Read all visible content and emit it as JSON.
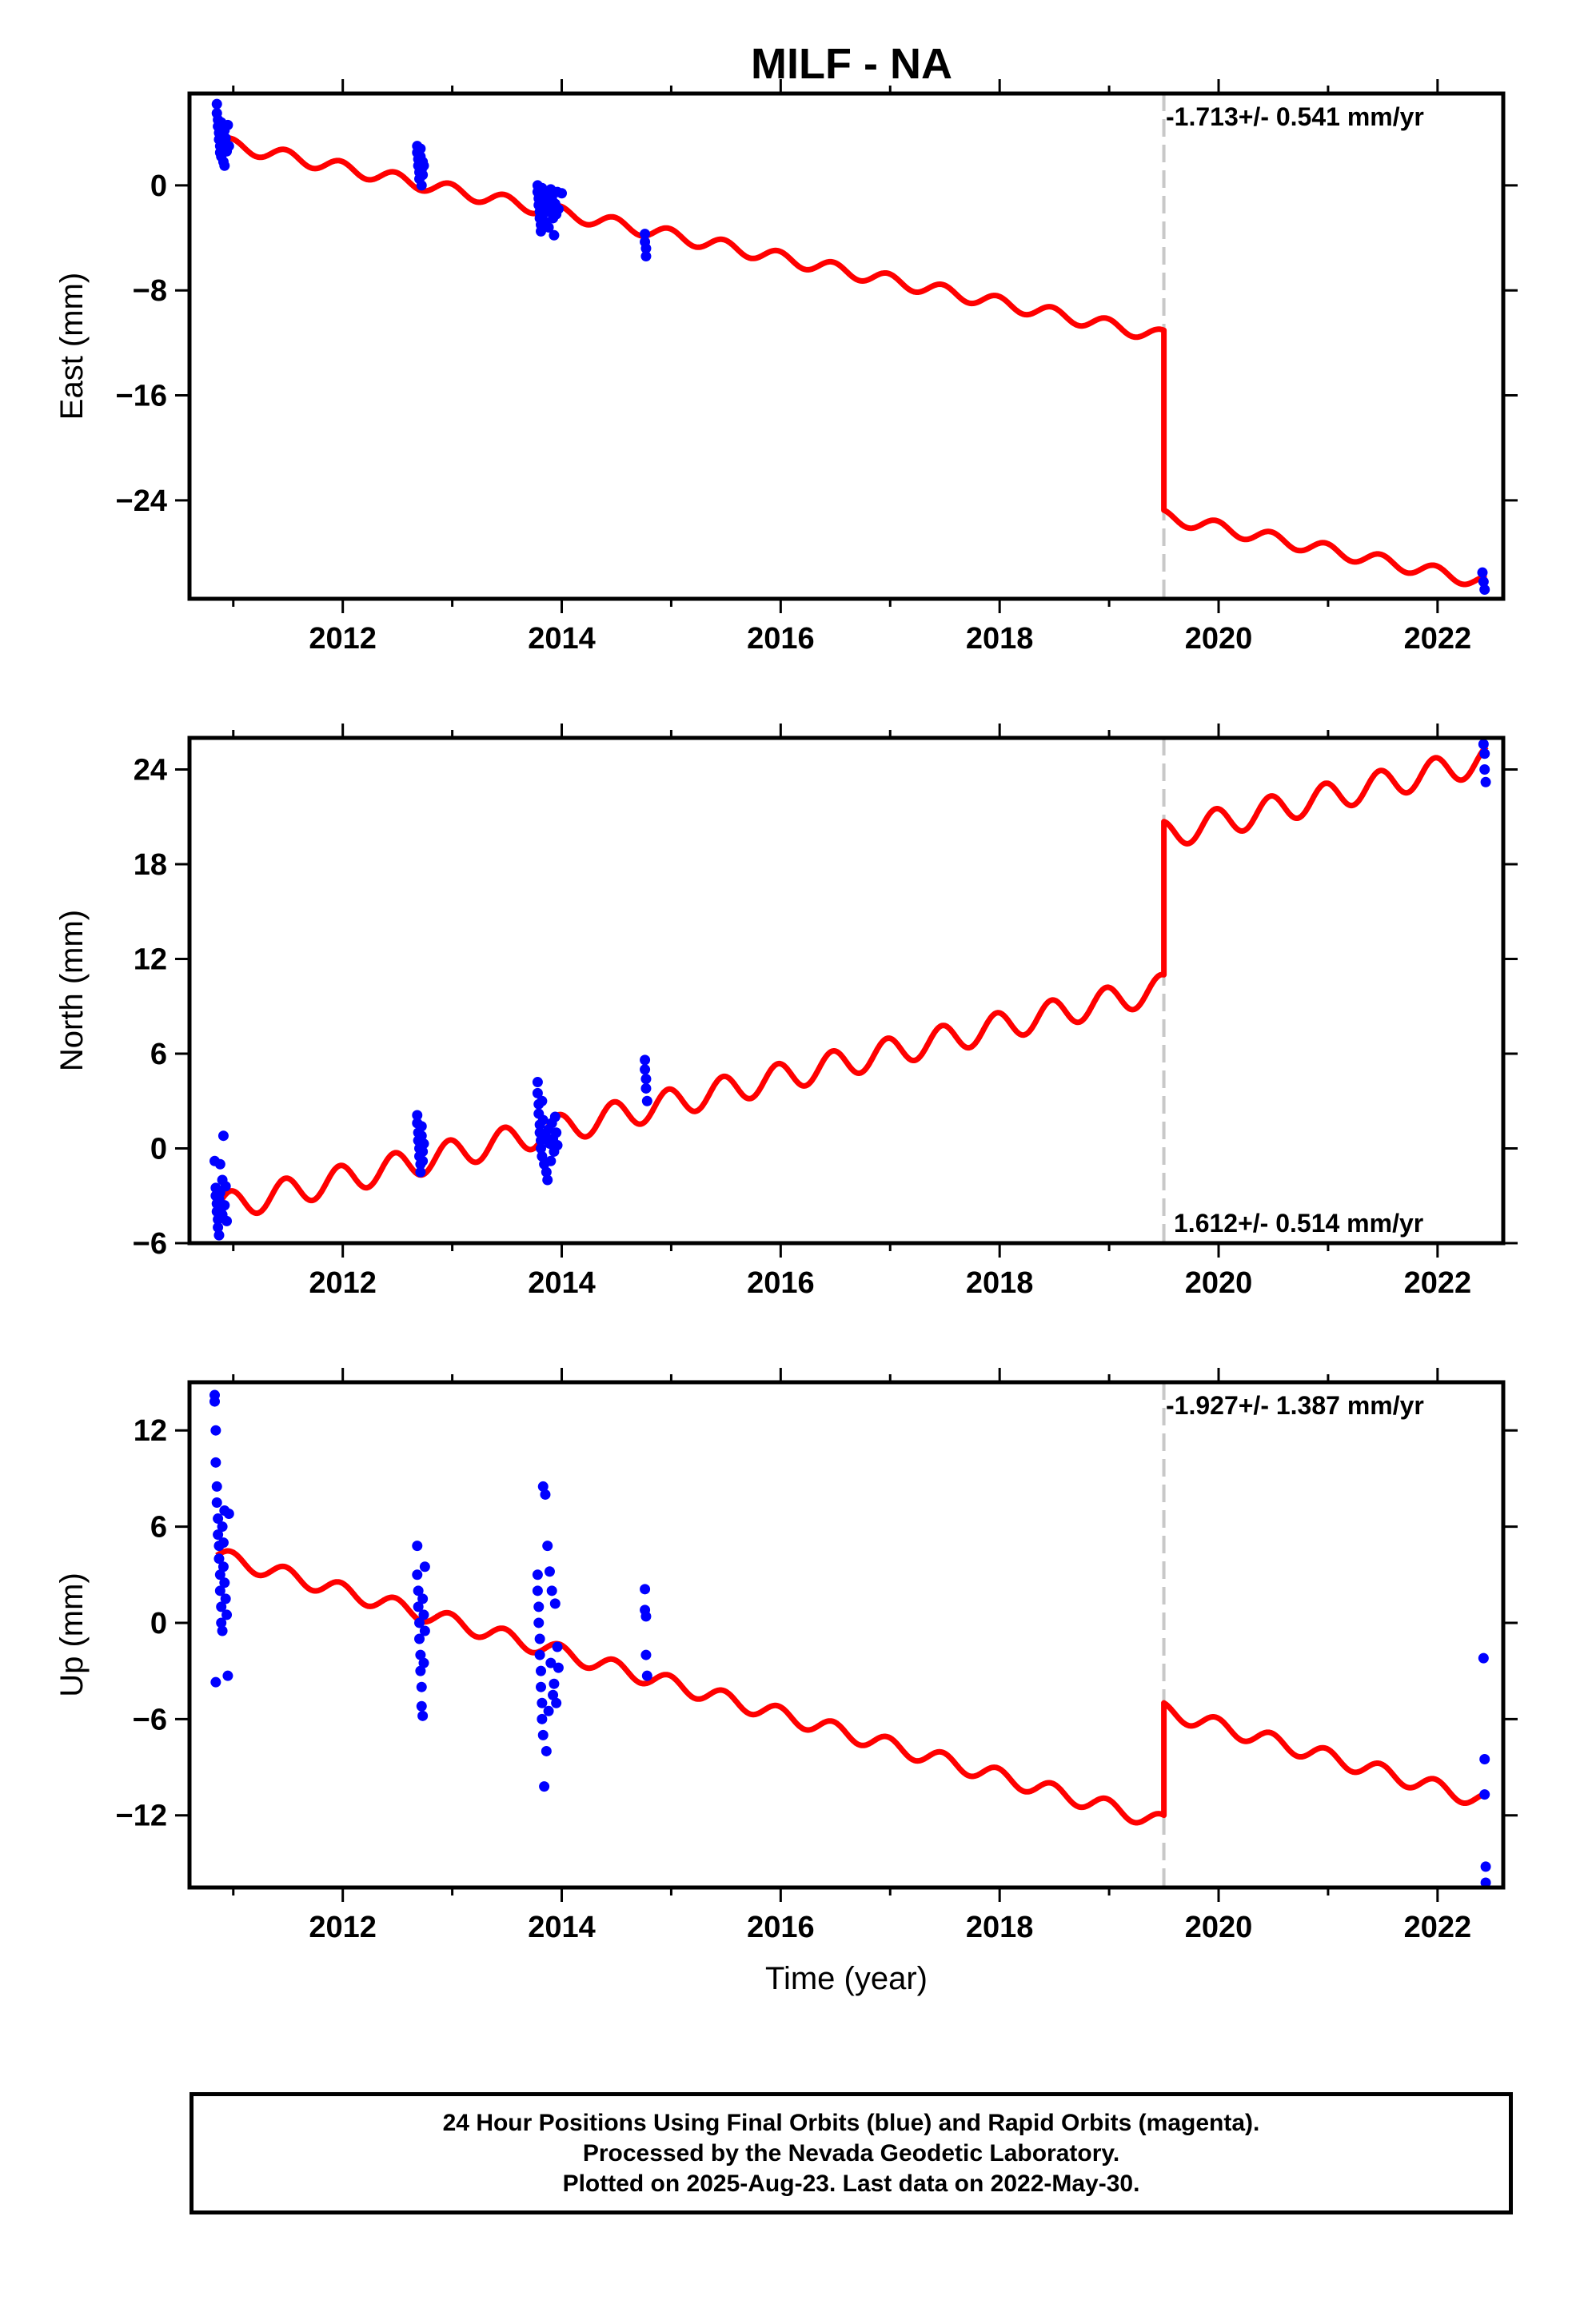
{
  "figure": {
    "title": "MILF - NA",
    "footer_lines": [
      "24 Hour Positions Using Final Orbits (blue) and Rapid Orbits (magenta).",
      "Processed by the Nevada Geodetic Laboratory.",
      "Plotted on 2025-Aug-23. Last data on 2022-May-30."
    ],
    "colors": {
      "final_orbit_points": "#0000ff",
      "model_line": "#ff0000",
      "offset_line": "#c8c8c8"
    }
  },
  "chart_data": [
    {
      "type": "scatter",
      "id": "east",
      "ylabel": "East (mm)",
      "xlim": [
        2010.6,
        2022.6
      ],
      "ylim": [
        -31.5,
        7
      ],
      "xticks": [
        2012,
        2014,
        2016,
        2018,
        2020,
        2022
      ],
      "yticks": [
        0,
        -8,
        -16,
        -24
      ],
      "rate_text": "-1.713+/- 0.541 mm/yr",
      "rate_position": "top-right",
      "offset_epoch": 2019.5,
      "model": {
        "start": [
          2010.85,
          3.3
        ],
        "rate": -1.713,
        "amplitude": 0.5,
        "step_at": 2019.5,
        "step": -13.7,
        "end": 2022.45
      },
      "points": [
        [
          2010.85,
          6.2
        ],
        [
          2010.85,
          5.5
        ],
        [
          2010.86,
          5.0
        ],
        [
          2010.86,
          4.5
        ],
        [
          2010.87,
          4.0
        ],
        [
          2010.87,
          3.5
        ],
        [
          2010.88,
          3.0
        ],
        [
          2010.88,
          2.5
        ],
        [
          2010.89,
          2.2
        ],
        [
          2010.89,
          4.8
        ],
        [
          2010.9,
          3.8
        ],
        [
          2010.9,
          3.2
        ],
        [
          2010.91,
          2.8
        ],
        [
          2010.91,
          1.8
        ],
        [
          2010.92,
          1.5
        ],
        [
          2010.92,
          4.2
        ],
        [
          2010.93,
          3.6
        ],
        [
          2010.94,
          2.6
        ],
        [
          2010.95,
          4.6
        ],
        [
          2010.96,
          3.0
        ],
        [
          2012.68,
          3.0
        ],
        [
          2012.68,
          2.5
        ],
        [
          2012.69,
          2.0
        ],
        [
          2012.69,
          1.5
        ],
        [
          2012.7,
          1.0
        ],
        [
          2012.7,
          0.5
        ],
        [
          2012.71,
          2.8
        ],
        [
          2012.71,
          2.2
        ],
        [
          2012.72,
          1.2
        ],
        [
          2012.72,
          0.0
        ],
        [
          2012.73,
          1.8
        ],
        [
          2012.73,
          0.8
        ],
        [
          2012.74,
          1.5
        ],
        [
          2013.78,
          0.0
        ],
        [
          2013.78,
          -0.5
        ],
        [
          2013.79,
          -1.0
        ],
        [
          2013.79,
          -1.5
        ],
        [
          2013.8,
          -2.0
        ],
        [
          2013.8,
          -2.5
        ],
        [
          2013.81,
          -3.0
        ],
        [
          2013.81,
          -3.5
        ],
        [
          2013.82,
          -1.2
        ],
        [
          2013.82,
          -0.2
        ],
        [
          2013.83,
          -2.2
        ],
        [
          2013.84,
          -1.8
        ],
        [
          2013.85,
          -2.8
        ],
        [
          2013.86,
          -0.8
        ],
        [
          2013.87,
          -1.5
        ],
        [
          2013.88,
          -3.2
        ],
        [
          2013.89,
          -2.0
        ],
        [
          2013.9,
          -0.3
        ],
        [
          2013.91,
          -1.0
        ],
        [
          2013.92,
          -2.5
        ],
        [
          2013.93,
          -3.8
        ],
        [
          2013.94,
          -1.4
        ],
        [
          2013.95,
          -2.2
        ],
        [
          2013.96,
          -0.5
        ],
        [
          2013.97,
          -1.8
        ],
        [
          2014.0,
          -0.6
        ],
        [
          2014.76,
          -3.7
        ],
        [
          2014.76,
          -4.3
        ],
        [
          2014.77,
          -4.8
        ],
        [
          2014.77,
          -5.4
        ],
        [
          2022.41,
          -29.5
        ],
        [
          2022.42,
          -30.2
        ],
        [
          2022.43,
          -30.8
        ]
      ]
    },
    {
      "type": "scatter",
      "id": "north",
      "ylabel": "North (mm)",
      "xlim": [
        2010.6,
        2022.6
      ],
      "ylim": [
        -6,
        26
      ],
      "xticks": [
        2012,
        2014,
        2016,
        2018,
        2020,
        2022
      ],
      "yticks": [
        24,
        18,
        12,
        6,
        0,
        -6
      ],
      "rate_text": "1.612+/- 0.514 mm/yr",
      "rate_position": "bottom-right",
      "offset_epoch": 2019.5,
      "model": {
        "start": [
          2010.85,
          -3.8
        ],
        "rate": 1.612,
        "amplitude": 0.9,
        "step_at": 2019.5,
        "step": 9.7,
        "end": 2022.45
      },
      "points": [
        [
          2010.83,
          -0.8
        ],
        [
          2010.84,
          -2.5
        ],
        [
          2010.84,
          -3.0
        ],
        [
          2010.85,
          -3.5
        ],
        [
          2010.85,
          -4.0
        ],
        [
          2010.86,
          -4.5
        ],
        [
          2010.86,
          -5.0
        ],
        [
          2010.87,
          -5.5
        ],
        [
          2010.87,
          -3.2
        ],
        [
          2010.88,
          -1.0
        ],
        [
          2010.88,
          -2.8
        ],
        [
          2010.89,
          -3.8
        ],
        [
          2010.9,
          -4.2
        ],
        [
          2010.9,
          -2.0
        ],
        [
          2010.91,
          0.8
        ],
        [
          2010.92,
          -3.6
        ],
        [
          2010.93,
          -2.4
        ],
        [
          2010.94,
          -4.6
        ],
        [
          2012.68,
          2.1
        ],
        [
          2012.68,
          1.6
        ],
        [
          2012.69,
          1.0
        ],
        [
          2012.69,
          0.5
        ],
        [
          2012.7,
          0.0
        ],
        [
          2012.7,
          -0.5
        ],
        [
          2012.71,
          -1.0
        ],
        [
          2012.71,
          -1.5
        ],
        [
          2012.72,
          0.8
        ],
        [
          2012.72,
          1.4
        ],
        [
          2012.73,
          -0.2
        ],
        [
          2012.73,
          -0.8
        ],
        [
          2012.74,
          0.3
        ],
        [
          2013.78,
          4.2
        ],
        [
          2013.78,
          3.5
        ],
        [
          2013.79,
          2.8
        ],
        [
          2013.79,
          2.2
        ],
        [
          2013.8,
          1.5
        ],
        [
          2013.8,
          1.0
        ],
        [
          2013.81,
          0.5
        ],
        [
          2013.81,
          0.0
        ],
        [
          2013.82,
          -0.5
        ],
        [
          2013.82,
          3.0
        ],
        [
          2013.83,
          1.8
        ],
        [
          2013.84,
          -1.0
        ],
        [
          2013.85,
          0.8
        ],
        [
          2013.86,
          -1.5
        ],
        [
          2013.87,
          -2.0
        ],
        [
          2013.88,
          1.2
        ],
        [
          2013.89,
          0.3
        ],
        [
          2013.9,
          -0.8
        ],
        [
          2013.91,
          1.6
        ],
        [
          2013.92,
          0.6
        ],
        [
          2013.93,
          -0.2
        ],
        [
          2013.94,
          2.0
        ],
        [
          2013.95,
          1.0
        ],
        [
          2013.96,
          0.2
        ],
        [
          2014.76,
          5.6
        ],
        [
          2014.76,
          5.0
        ],
        [
          2014.77,
          4.4
        ],
        [
          2014.77,
          3.8
        ],
        [
          2014.78,
          3.0
        ],
        [
          2022.42,
          25.6
        ],
        [
          2022.43,
          25.0
        ],
        [
          2022.43,
          24.0
        ],
        [
          2022.44,
          23.2
        ]
      ]
    },
    {
      "type": "scatter",
      "id": "up",
      "ylabel": "Up (mm)",
      "xlabel": "Time (year)",
      "xlim": [
        2010.6,
        2022.6
      ],
      "ylim": [
        -16.5,
        15
      ],
      "xticks": [
        2012,
        2014,
        2016,
        2018,
        2020,
        2022
      ],
      "yticks": [
        12,
        6,
        0,
        -6,
        -12
      ],
      "rate_text": "-1.927+/- 1.387 mm/yr",
      "rate_position": "top-right",
      "offset_epoch": 2019.5,
      "model": {
        "start": [
          2010.85,
          4.2
        ],
        "rate": -1.927,
        "amplitude": 0.5,
        "step_at": 2019.5,
        "step": 7.0,
        "end": 2022.45
      },
      "points": [
        [
          2010.83,
          14.2
        ],
        [
          2010.83,
          13.8
        ],
        [
          2010.84,
          12.0
        ],
        [
          2010.84,
          10.0
        ],
        [
          2010.85,
          8.5
        ],
        [
          2010.85,
          7.5
        ],
        [
          2010.86,
          6.5
        ],
        [
          2010.86,
          5.5
        ],
        [
          2010.87,
          4.8
        ],
        [
          2010.87,
          4.0
        ],
        [
          2010.88,
          3.0
        ],
        [
          2010.88,
          2.0
        ],
        [
          2010.89,
          1.0
        ],
        [
          2010.89,
          0.0
        ],
        [
          2010.9,
          -0.5
        ],
        [
          2010.9,
          6.0
        ],
        [
          2010.91,
          5.0
        ],
        [
          2010.91,
          3.5
        ],
        [
          2010.92,
          7.0
        ],
        [
          2010.92,
          2.5
        ],
        [
          2010.93,
          1.5
        ],
        [
          2010.94,
          0.5
        ],
        [
          2010.95,
          -3.3
        ],
        [
          2010.84,
          -3.7
        ],
        [
          2010.96,
          6.8
        ],
        [
          2012.68,
          4.8
        ],
        [
          2012.68,
          3.0
        ],
        [
          2012.69,
          2.0
        ],
        [
          2012.69,
          1.0
        ],
        [
          2012.7,
          0.0
        ],
        [
          2012.7,
          -1.0
        ],
        [
          2012.71,
          -2.0
        ],
        [
          2012.71,
          -3.0
        ],
        [
          2012.72,
          -4.0
        ],
        [
          2012.72,
          -5.2
        ],
        [
          2012.73,
          -5.8
        ],
        [
          2012.73,
          1.5
        ],
        [
          2012.74,
          0.5
        ],
        [
          2012.74,
          -2.5
        ],
        [
          2012.75,
          3.5
        ],
        [
          2012.75,
          -0.5
        ],
        [
          2013.78,
          3.0
        ],
        [
          2013.78,
          2.0
        ],
        [
          2013.79,
          1.0
        ],
        [
          2013.79,
          0.0
        ],
        [
          2013.8,
          -1.0
        ],
        [
          2013.8,
          -2.0
        ],
        [
          2013.81,
          -3.0
        ],
        [
          2013.81,
          -4.0
        ],
        [
          2013.82,
          -5.0
        ],
        [
          2013.82,
          -6.0
        ],
        [
          2013.83,
          -7.0
        ],
        [
          2013.83,
          8.5
        ],
        [
          2013.84,
          -10.2
        ],
        [
          2013.85,
          8.0
        ],
        [
          2013.86,
          -8.0
        ],
        [
          2013.87,
          4.8
        ],
        [
          2013.88,
          -5.5
        ],
        [
          2013.89,
          3.2
        ],
        [
          2013.9,
          -2.5
        ],
        [
          2013.91,
          2.0
        ],
        [
          2013.92,
          -4.5
        ],
        [
          2013.93,
          -3.8
        ],
        [
          2013.94,
          1.2
        ],
        [
          2013.95,
          -5.0
        ],
        [
          2013.96,
          -1.5
        ],
        [
          2013.97,
          -2.8
        ],
        [
          2014.76,
          2.1
        ],
        [
          2014.76,
          0.8
        ],
        [
          2014.77,
          0.4
        ],
        [
          2014.77,
          -2.0
        ],
        [
          2014.78,
          -3.3
        ],
        [
          2022.42,
          -2.2
        ],
        [
          2022.43,
          -8.5
        ],
        [
          2022.43,
          -10.7
        ],
        [
          2022.44,
          -15.2
        ],
        [
          2022.44,
          -16.2
        ]
      ]
    }
  ]
}
